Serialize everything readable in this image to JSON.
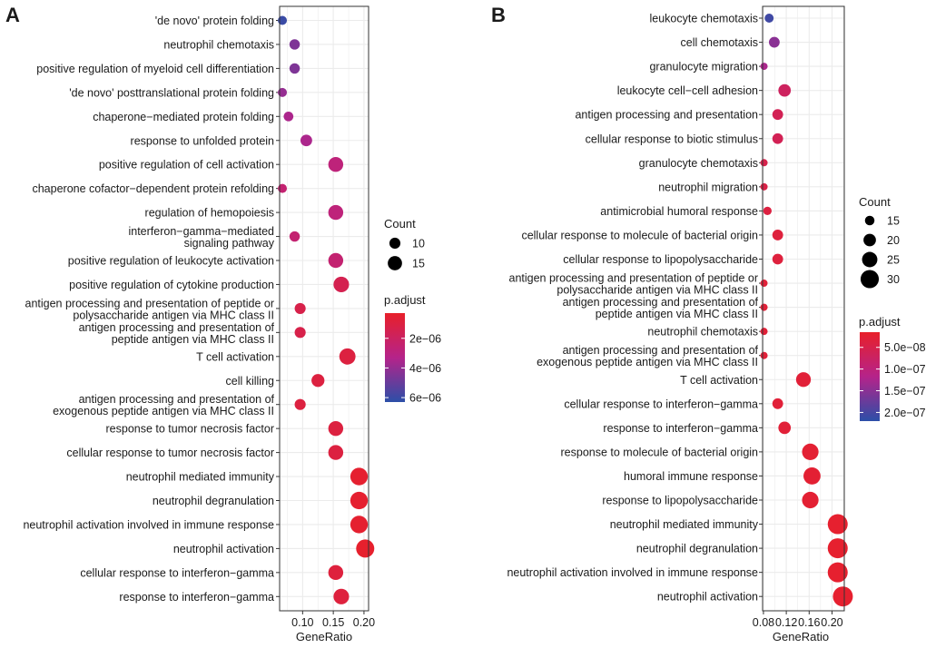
{
  "figure": {
    "type": "dot plot (GO enrichment)"
  },
  "chart_data": [
    {
      "panel_label": "A",
      "type": "scatter",
      "xlabel": "GeneRatio",
      "xlim": [
        0.0625,
        0.2075
      ],
      "xticks": [
        0.1,
        0.15,
        0.2
      ],
      "xtick_labels": [
        "0.10",
        "0.15",
        "0.20"
      ],
      "grid": true,
      "categories": [
        "'de novo' protein folding",
        "neutrophil chemotaxis",
        "positive regulation of myeloid cell differentiation",
        "'de novo' posttranslational protein folding",
        "chaperone−mediated protein folding",
        "response to unfolded protein",
        "positive regulation of cell activation",
        "chaperone cofactor−dependent protein refolding",
        "regulation of hemopoiesis",
        "interferon−gamma−mediated\nsignaling pathway",
        "positive regulation of leukocyte activation",
        "positive regulation of cytokine production",
        "antigen processing and presentation of peptide or\npolysaccharide antigen via MHC class II",
        "antigen processing and presentation of\npeptide antigen via MHC class II",
        "T cell activation",
        "cell killing",
        "antigen processing and presentation of\nexogenous peptide antigen via MHC class II",
        "response to tumor necrosis factor",
        "cellular response to tumor necrosis factor",
        "neutrophil mediated immunity",
        "neutrophil degranulation",
        "neutrophil activation involved in immune response",
        "neutrophil activation",
        "cellular response to interferon−gamma",
        "response to interferon−gamma"
      ],
      "x": [
        0.067,
        0.087,
        0.087,
        0.067,
        0.077,
        0.106,
        0.154,
        0.067,
        0.154,
        0.087,
        0.154,
        0.163,
        0.096,
        0.096,
        0.173,
        0.125,
        0.096,
        0.154,
        0.154,
        0.192,
        0.192,
        0.192,
        0.202,
        0.154,
        0.163
      ],
      "count": [
        7,
        9,
        9,
        7,
        8,
        11,
        16,
        7,
        16,
        9,
        16,
        17,
        10,
        10,
        18,
        13,
        10,
        16,
        16,
        20,
        20,
        20,
        21,
        16,
        17
      ],
      "p_adjust": [
        6e-06,
        4.5e-06,
        4.5e-06,
        4e-06,
        3.5e-06,
        3.5e-06,
        2.8e-06,
        2.5e-06,
        2.8e-06,
        2.5e-06,
        2.5e-06,
        1.5e-06,
        1.3e-06,
        1.3e-06,
        1e-06,
        1e-06,
        1e-06,
        1e-06,
        1e-06,
        5e-07,
        5e-07,
        5e-07,
        4e-07,
        9e-07,
        9e-07
      ],
      "size_legend": {
        "title": "Count",
        "values": [
          10,
          15
        ],
        "labels": [
          "10",
          "15"
        ]
      },
      "color_legend": {
        "title": "p.adjust",
        "range": [
          3e-07,
          6.3e-06
        ],
        "ticks": [
          2e-06,
          4e-06,
          6e-06
        ],
        "tick_labels": [
          "2e−06",
          "4e−06",
          "6e−06"
        ],
        "low_color": "#e8202a",
        "mid_color": "#b5238a",
        "high_color": "#2c4fa8"
      }
    },
    {
      "panel_label": "B",
      "type": "scatter",
      "xlabel": "GeneRatio",
      "xlim": [
        0.0785,
        0.2215
      ],
      "xticks": [
        0.08,
        0.12,
        0.16,
        0.2
      ],
      "xtick_labels": [
        "0.08",
        "0.12",
        "0.16",
        "0.20"
      ],
      "grid": true,
      "categories": [
        "leukocyte chemotaxis",
        "cell chemotaxis",
        "granulocyte migration",
        "leukocyte cell−cell adhesion",
        "antigen processing and presentation",
        "cellular response to biotic stimulus",
        "granulocyte chemotaxis",
        "neutrophil migration",
        "antimicrobial humoral response",
        "cellular response to molecule of bacterial origin",
        "cellular response to lipopolysaccharide",
        "antigen processing and presentation of peptide or\npolysaccharide antigen via MHC class II",
        "antigen processing and presentation of\npeptide antigen via MHC class II",
        "neutrophil chemotaxis",
        "antigen processing and presentation of\nexogenous peptide antigen via MHC class II",
        "T cell activation",
        "cellular response to interferon−gamma",
        "response to interferon−gamma",
        "response to molecule of bacterial origin",
        "humoral immune response",
        "response to lipopolysaccharide",
        "neutrophil mediated immunity",
        "neutrophil degranulation",
        "neutrophil activation involved in immune response",
        "neutrophil activation"
      ],
      "x": [
        0.09,
        0.099,
        0.081,
        0.117,
        0.105,
        0.105,
        0.081,
        0.081,
        0.087,
        0.105,
        0.105,
        0.081,
        0.081,
        0.081,
        0.081,
        0.15,
        0.105,
        0.117,
        0.162,
        0.165,
        0.162,
        0.21,
        0.21,
        0.21,
        0.219
      ],
      "count": [
        14,
        17,
        11,
        20,
        17,
        17,
        11,
        11,
        13,
        17,
        17,
        11,
        11,
        11,
        11,
        24,
        17,
        20,
        27,
        28,
        27,
        33,
        33,
        33,
        33
      ],
      "p_adjust": [
        2.05e-07,
        1.5e-07,
        1.25e-07,
        7e-08,
        6e-08,
        6e-08,
        5e-08,
        4.5e-08,
        4e-08,
        3.5e-08,
        3.5e-08,
        3e-08,
        3e-08,
        3e-08,
        3e-08,
        3e-08,
        3e-08,
        3e-08,
        2.5e-08,
        2.5e-08,
        2.5e-08,
        2e-08,
        2e-08,
        2e-08,
        2e-08
      ],
      "size_legend": {
        "title": "Count",
        "values": [
          15,
          20,
          25,
          30
        ],
        "labels": [
          "15",
          "20",
          "25",
          "30"
        ]
      },
      "color_legend": {
        "title": "p.adjust",
        "range": [
          1.5e-08,
          2.2e-07
        ],
        "ticks": [
          5e-08,
          1e-07,
          1.5e-07,
          2e-07
        ],
        "tick_labels": [
          "5.0e−08",
          "1.0e−07",
          "1.5e−07",
          "2.0e−07"
        ],
        "low_color": "#e8202a",
        "mid_color": "#b5238a",
        "high_color": "#2c4fa8"
      }
    }
  ]
}
